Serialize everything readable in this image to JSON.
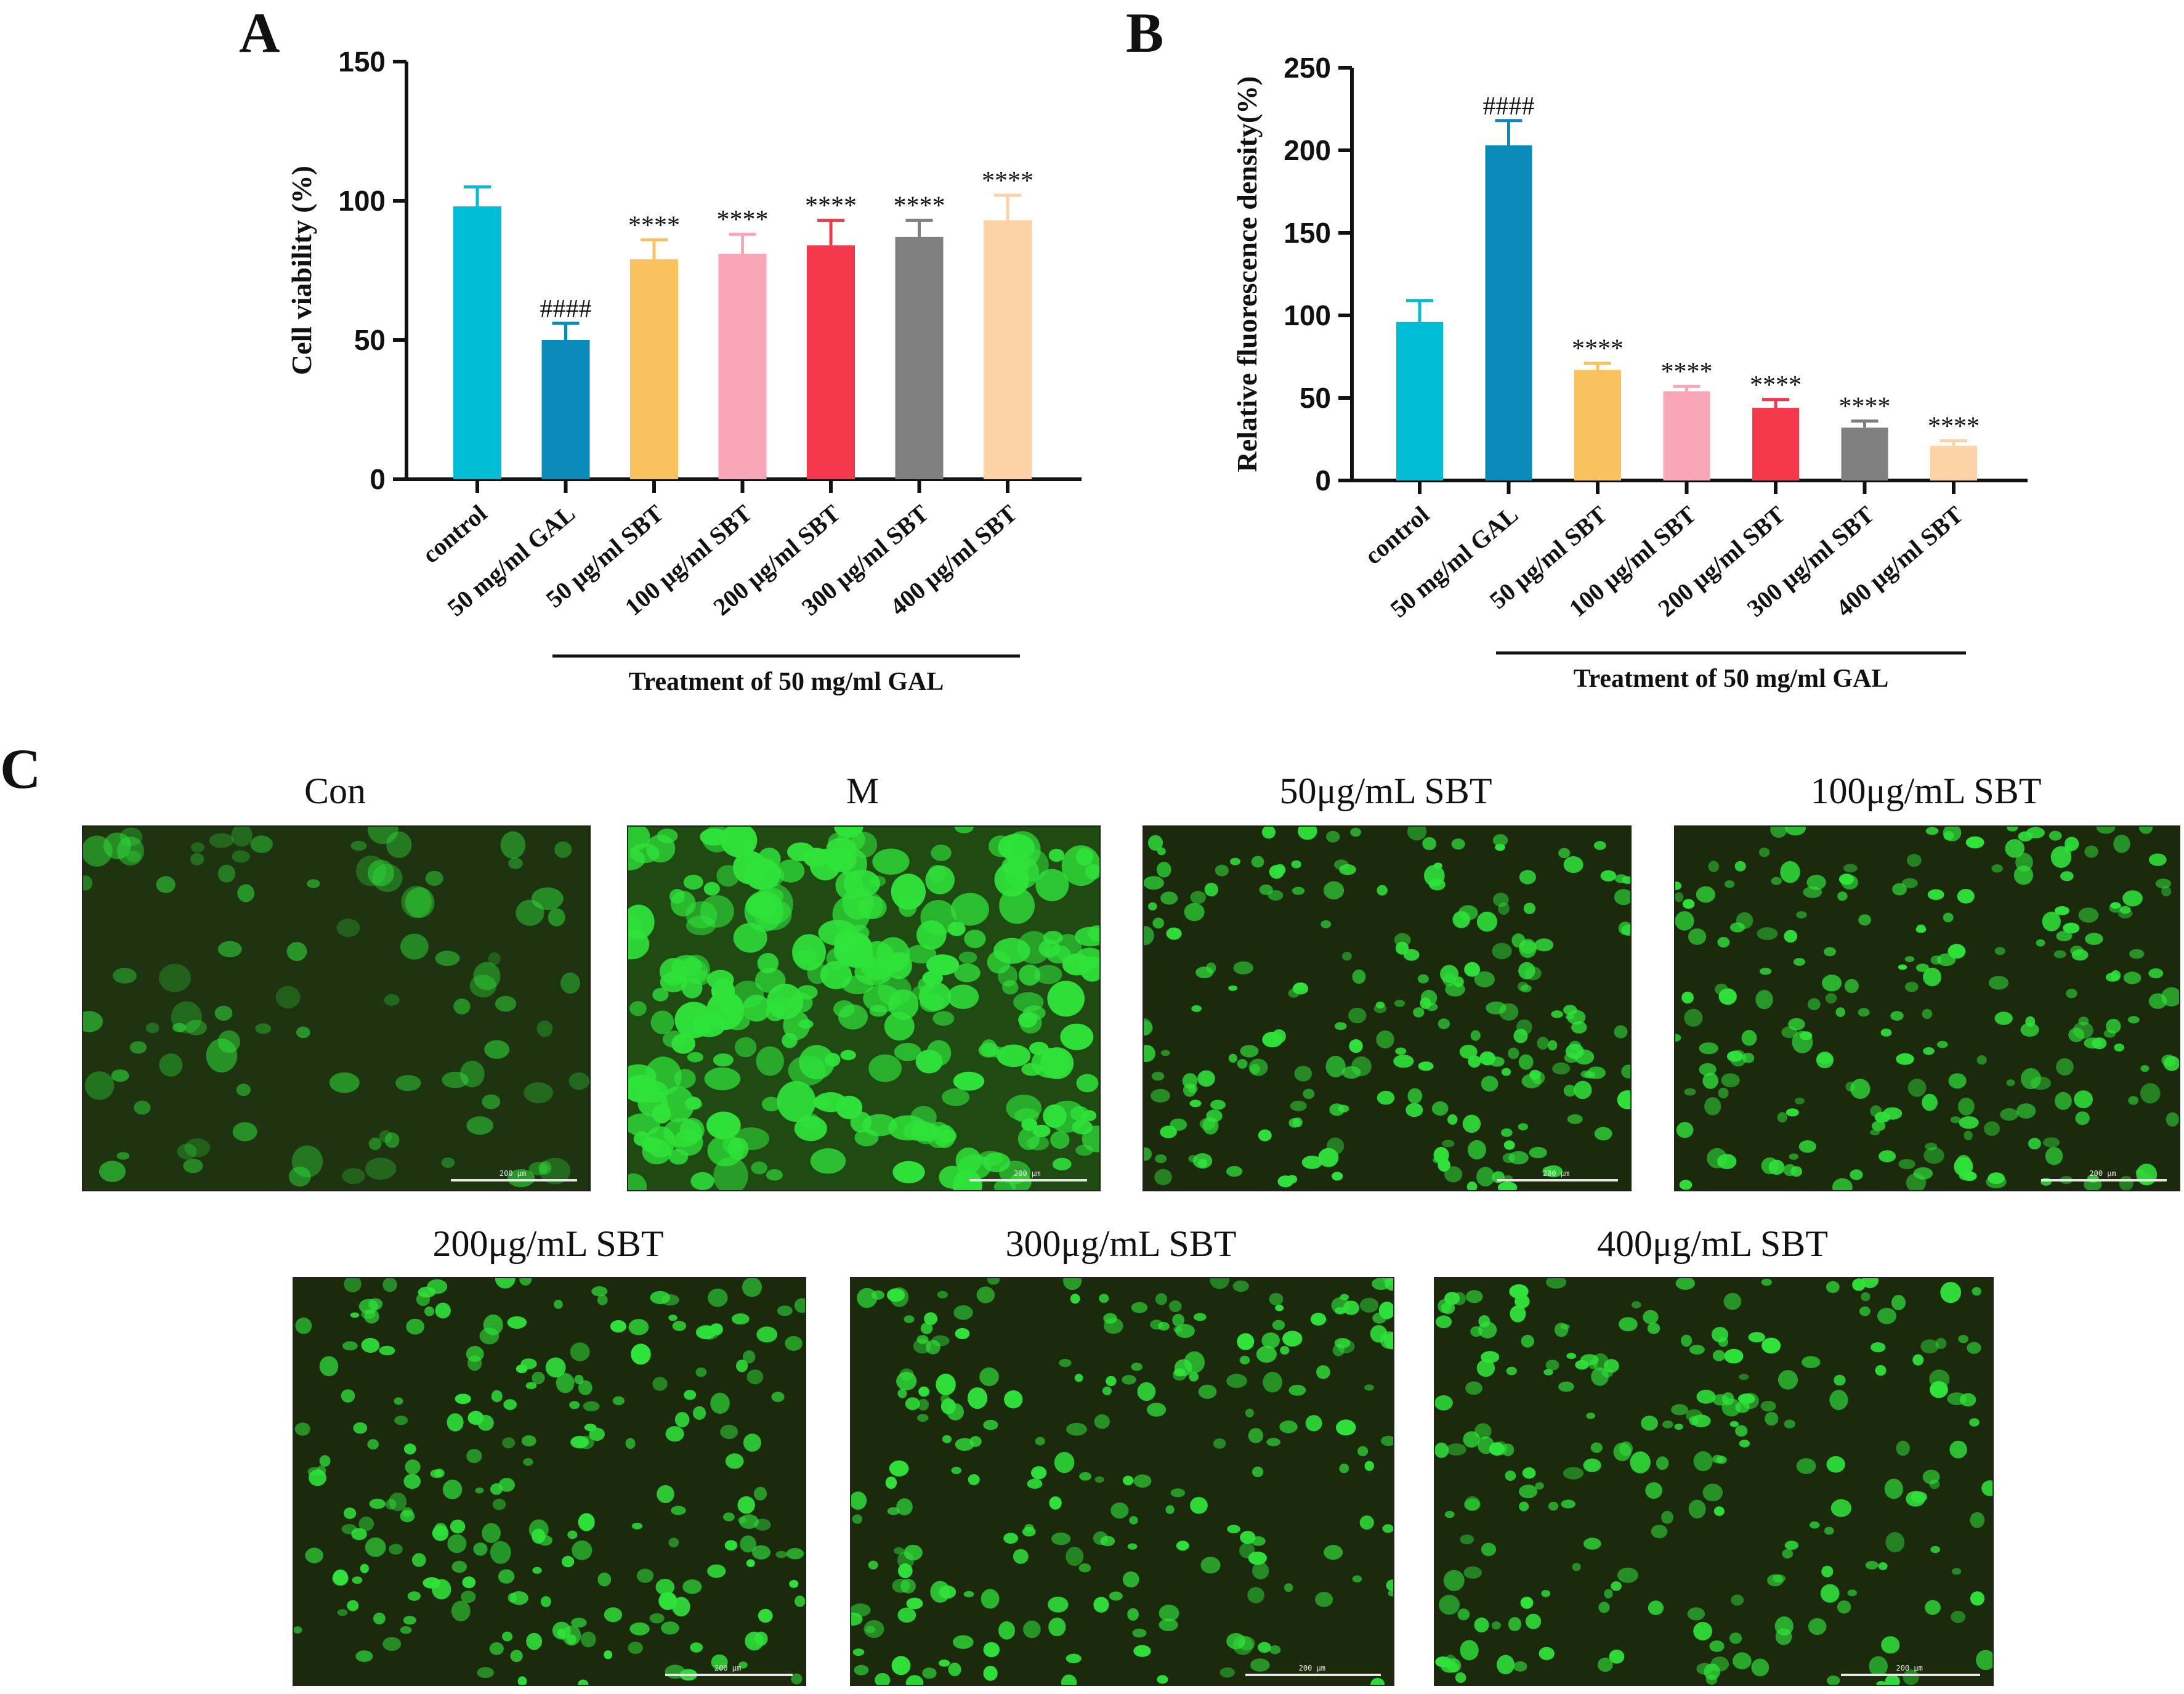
{
  "figure": {
    "panel_labels": {
      "a": "A",
      "b": "B",
      "c": "C"
    }
  },
  "chart_data": [
    {
      "id": "A",
      "type": "bar",
      "ylabel": "Cell viability (%)",
      "xlabel": "",
      "ylim": [
        0,
        150
      ],
      "yticks": [
        0,
        50,
        100,
        150
      ],
      "categories": [
        "control",
        "50 mg/ml GAL",
        "50 μg/ml SBT",
        "100 μg/ml SBT",
        "200 μg/ml SBT",
        "300 μg/ml SBT",
        "400 μg/ml SBT"
      ],
      "values": [
        98,
        50,
        79,
        81,
        84,
        87,
        93
      ],
      "errors": [
        7,
        6,
        7,
        7,
        9,
        6,
        9
      ],
      "annotations": [
        "",
        "####",
        "****",
        "****",
        "****",
        "****",
        "****"
      ],
      "colors": [
        "#00bcd4",
        "#0a8ab8",
        "#f9c25e",
        "#f9a7b8",
        "#f4384b",
        "#808080",
        "#fdd3a5"
      ],
      "treatment_label": "Treatment of  50 mg/ml GAL",
      "legend": "none"
    },
    {
      "id": "B",
      "type": "bar",
      "ylabel": "Relative fluorescence density(%)",
      "xlabel": "",
      "ylim": [
        0,
        250
      ],
      "yticks": [
        0,
        50,
        100,
        150,
        200,
        250
      ],
      "categories": [
        "control",
        "50 mg/ml GAL",
        "50 μg/ml SBT",
        "100 μg/ml SBT",
        "200 μg/ml SBT",
        "300 μg/ml SBT",
        "400 μg/ml SBT"
      ],
      "values": [
        96,
        203,
        67,
        54,
        44,
        32,
        21
      ],
      "errors": [
        13,
        15,
        4,
        3,
        5,
        4,
        3
      ],
      "annotations": [
        "",
        "####",
        "****",
        "****",
        "****",
        "****",
        "****"
      ],
      "colors": [
        "#00bcd4",
        "#0a8ab8",
        "#f9c25e",
        "#f9a7b8",
        "#f4384b",
        "#808080",
        "#fdd3a5"
      ],
      "treatment_label": "Treatment of  50 mg/ml GAL",
      "legend": "none"
    }
  ],
  "micrographs": {
    "row1": [
      {
        "title": "Con",
        "scale": "200 μm",
        "brightness": "low"
      },
      {
        "title": "M",
        "scale": "200 μm",
        "brightness": "high"
      },
      {
        "title": "50μg/mL SBT",
        "scale": "200 μm",
        "brightness": "medium"
      },
      {
        "title": "100μg/mL SBT",
        "scale": "200 μm",
        "brightness": "medium"
      }
    ],
    "row2": [
      {
        "title": "200μg/mL SBT",
        "scale": "200 μm",
        "brightness": "medium"
      },
      {
        "title": "300μg/mL SBT",
        "scale": "200 μm",
        "brightness": "medium"
      },
      {
        "title": "400μg/mL SBT",
        "scale": "200 μm",
        "brightness": "medium"
      }
    ],
    "cell_color": "#2fe33a",
    "background_color": "#1c2a0c"
  }
}
